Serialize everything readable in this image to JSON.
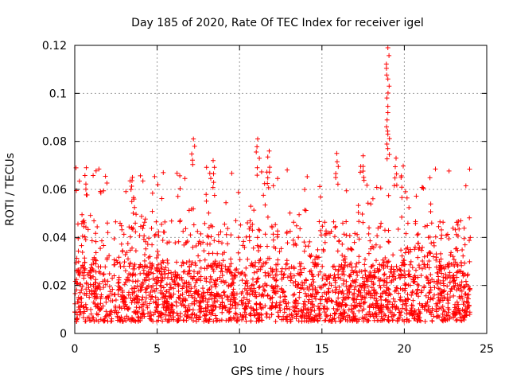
{
  "chart_data": {
    "type": "scatter",
    "title": "Day 185 of 2020, Rate Of TEC Index for receiver igel",
    "xlabel": "GPS time / hours",
    "ylabel": "ROTI / TECUs",
    "xlim": [
      0,
      25
    ],
    "ylim": [
      0,
      0.12
    ],
    "xticks": [
      0,
      5,
      10,
      15,
      20,
      25
    ],
    "xtick_labels": [
      "0",
      "5",
      "10",
      "15",
      "20",
      "25"
    ],
    "yticks": [
      0,
      0.02,
      0.04,
      0.06,
      0.08,
      0.1,
      0.12
    ],
    "ytick_labels": [
      "0",
      "0.02",
      "0.04",
      "0.06",
      "0.08",
      "0.1",
      "0.12"
    ],
    "grid": true,
    "marker": "plus",
    "color": "#ff0000",
    "x_range_of_data": [
      0,
      24
    ],
    "bulk_value_range": [
      0.005,
      0.03
    ],
    "notable_points": [
      {
        "x": 19.0,
        "y": 0.119
      },
      {
        "x": 19.0,
        "y": 0.106
      },
      {
        "x": 19.0,
        "y": 0.092
      },
      {
        "x": 19.0,
        "y": 0.083
      },
      {
        "x": 7.2,
        "y": 0.081
      },
      {
        "x": 11.1,
        "y": 0.081
      },
      {
        "x": 11.8,
        "y": 0.076
      },
      {
        "x": 15.9,
        "y": 0.075
      },
      {
        "x": 17.5,
        "y": 0.074
      },
      {
        "x": 19.5,
        "y": 0.073
      },
      {
        "x": 8.4,
        "y": 0.072
      },
      {
        "x": 0.7,
        "y": 0.069
      },
      {
        "x": 3.5,
        "y": 0.065
      }
    ]
  }
}
